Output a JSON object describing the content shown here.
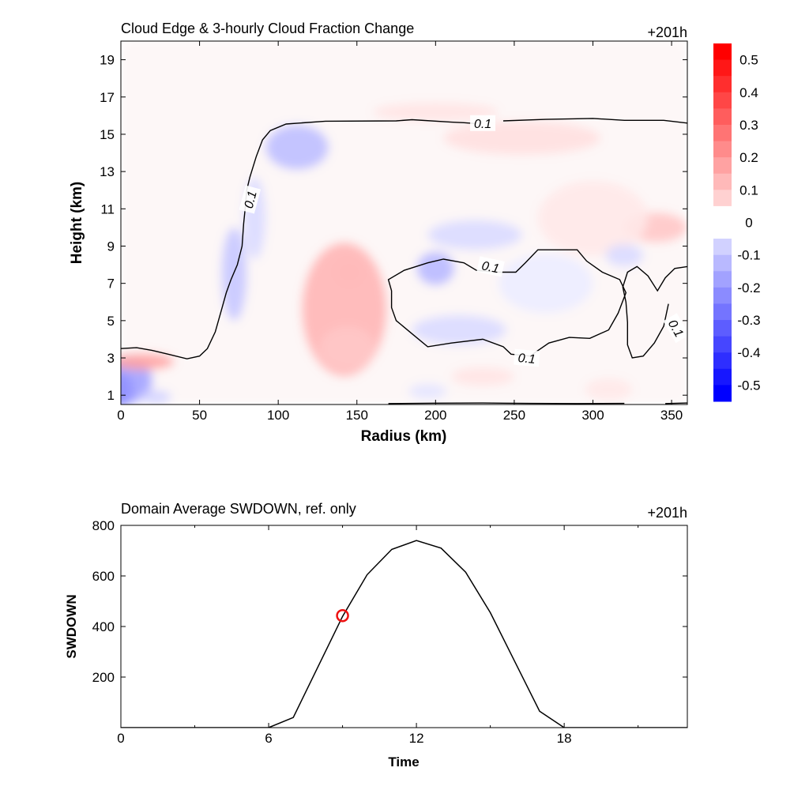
{
  "chart_data": [
    {
      "type": "heatmap",
      "title": "Cloud Edge & 3-hourly Cloud Fraction Change",
      "time_label": "+201h",
      "xlabel": "Radius (km)",
      "ylabel": "Height (km)",
      "xlim": [
        0,
        360
      ],
      "ylim": [
        0.5,
        20
      ],
      "xticks": [
        0,
        50,
        100,
        150,
        200,
        250,
        300,
        350
      ],
      "yticks": [
        1,
        3,
        5,
        7,
        9,
        11,
        13,
        15,
        17,
        19
      ],
      "colorbar": {
        "min": -0.55,
        "max": 0.55,
        "step": 0.05,
        "tick_values": [
          0.5,
          0.4,
          0.3,
          0.2,
          0.1,
          0,
          -0.1,
          -0.2,
          -0.3,
          -0.4,
          -0.5
        ],
        "tick_labels": [
          "0.5",
          "0.4",
          "0.3",
          "0.2",
          "0.1",
          "0",
          "-0.1",
          "-0.2",
          "-0.3",
          "-0.4",
          "-0.5"
        ],
        "neg_color": "#0000ff",
        "pos_color": "#ff0000"
      },
      "anomalies": [
        {
          "x": 0,
          "y": 1.3,
          "rx": 8,
          "ry": 0.9,
          "v": -0.55
        },
        {
          "x": 2,
          "y": 1.8,
          "rx": 18,
          "ry": 1.3,
          "v": -0.2
        },
        {
          "x": 14,
          "y": 2.8,
          "rx": 20,
          "ry": 0.45,
          "v": 0.2
        },
        {
          "x": 22,
          "y": 0.9,
          "rx": 10,
          "ry": 0.35,
          "v": -0.1
        },
        {
          "x": 112,
          "y": 14.3,
          "rx": 20,
          "ry": 1.2,
          "v": -0.14
        },
        {
          "x": 72,
          "y": 7.5,
          "rx": 8,
          "ry": 2.5,
          "v": -0.12
        },
        {
          "x": 85,
          "y": 10.5,
          "rx": 7,
          "ry": 2.2,
          "v": -0.08
        },
        {
          "x": 142,
          "y": 5.6,
          "rx": 27,
          "ry": 3.6,
          "v": 0.16
        },
        {
          "x": 144,
          "y": 3.5,
          "rx": 18,
          "ry": 1.2,
          "v": 0.12
        },
        {
          "x": 145,
          "y": 7.6,
          "rx": 9,
          "ry": 0.7,
          "v": 0.15
        },
        {
          "x": 200,
          "y": 7.8,
          "rx": 12,
          "ry": 0.9,
          "v": -0.15
        },
        {
          "x": 215,
          "y": 4.5,
          "rx": 30,
          "ry": 0.8,
          "v": -0.08
        },
        {
          "x": 225,
          "y": 9.6,
          "rx": 30,
          "ry": 0.8,
          "v": -0.08
        },
        {
          "x": 255,
          "y": 14.8,
          "rx": 50,
          "ry": 0.9,
          "v": 0.07
        },
        {
          "x": 200,
          "y": 16.2,
          "rx": 40,
          "ry": 0.5,
          "v": 0.06
        },
        {
          "x": 340,
          "y": 10.0,
          "rx": 20,
          "ry": 0.8,
          "v": 0.12
        },
        {
          "x": 300,
          "y": 10.5,
          "rx": 35,
          "ry": 2.0,
          "v": 0.05
        },
        {
          "x": 320,
          "y": 8.5,
          "rx": 12,
          "ry": 0.6,
          "v": -0.08
        },
        {
          "x": 270,
          "y": 7.0,
          "rx": 30,
          "ry": 1.6,
          "v": -0.04
        },
        {
          "x": 230,
          "y": 2.0,
          "rx": 20,
          "ry": 0.5,
          "v": 0.06
        },
        {
          "x": 310,
          "y": 1.3,
          "rx": 15,
          "ry": 0.6,
          "v": 0.05
        },
        {
          "x": 195,
          "y": 1.2,
          "rx": 12,
          "ry": 0.4,
          "v": -0.06
        }
      ],
      "contours": [
        {
          "level": 0.1,
          "closed": false,
          "points": [
            [
              0,
              3.5
            ],
            [
              10,
              3.55
            ],
            [
              20,
              3.4
            ],
            [
              30,
              3.2
            ],
            [
              42,
              2.95
            ],
            [
              50,
              3.1
            ],
            [
              55,
              3.5
            ],
            [
              60,
              4.4
            ],
            [
              64,
              5.6
            ],
            [
              67,
              6.5
            ],
            [
              70,
              7.2
            ],
            [
              74,
              8.0
            ],
            [
              77,
              9.0
            ],
            [
              78,
              10.2
            ],
            [
              79,
              11.0
            ],
            [
              80,
              12.0
            ],
            [
              82,
              12.7
            ],
            [
              86,
              13.8
            ],
            [
              90,
              14.7
            ],
            [
              95,
              15.2
            ],
            [
              105,
              15.55
            ],
            [
              130,
              15.7
            ],
            [
              175,
              15.72
            ],
            [
              185,
              15.78
            ],
            [
              210,
              15.65
            ],
            [
              218,
              15.62
            ],
            [
              225,
              15.58
            ]
          ]
        },
        {
          "level": 0.1,
          "closed": false,
          "points": [
            [
              243,
              15.72
            ],
            [
              270,
              15.8
            ],
            [
              300,
              15.85
            ],
            [
              320,
              15.75
            ],
            [
              345,
              15.75
            ],
            [
              360,
              15.6
            ]
          ]
        },
        {
          "level": 0.1,
          "closed": true,
          "points": [
            [
              218,
              8.1
            ],
            [
              205,
              8.3
            ],
            [
              195,
              8.1
            ],
            [
              180,
              7.7
            ],
            [
              170,
              7.2
            ],
            [
              172,
              6.6
            ],
            [
              172,
              5.7
            ],
            [
              175,
              5.0
            ],
            [
              185,
              4.3
            ],
            [
              195,
              3.6
            ],
            [
              210,
              3.8
            ],
            [
              230,
              4.0
            ],
            [
              243,
              3.6
            ],
            [
              248,
              3.2
            ],
            [
              260,
              3.1
            ],
            [
              272,
              3.8
            ],
            [
              285,
              4.1
            ],
            [
              298,
              4.05
            ],
            [
              310,
              4.5
            ],
            [
              316,
              5.4
            ],
            [
              321,
              6.5
            ],
            [
              317,
              7.2
            ],
            [
              306,
              7.6
            ],
            [
              296,
              8.2
            ],
            [
              290,
              8.8
            ],
            [
              265,
              8.8
            ],
            [
              257,
              8.1
            ],
            [
              251,
              7.6
            ],
            [
              240,
              7.6
            ],
            [
              226,
              7.7
            ]
          ]
        },
        {
          "level": 0.1,
          "closed": false,
          "points": [
            [
              360,
              7.9
            ],
            [
              352,
              7.8
            ],
            [
              346,
              7.3
            ],
            [
              341,
              6.6
            ],
            [
              335,
              7.4
            ],
            [
              328,
              7.9
            ],
            [
              322,
              7.6
            ],
            [
              319,
              6.8
            ],
            [
              321,
              6.0
            ],
            [
              322,
              4.9
            ],
            [
              322,
              3.7
            ],
            [
              325,
              3.0
            ],
            [
              332,
              3.1
            ],
            [
              339,
              3.8
            ],
            [
              345,
              4.7
            ],
            [
              348,
              5.9
            ]
          ]
        },
        {
          "level": 0.1,
          "closed": false,
          "points": [
            [
              346,
              0.55
            ],
            [
              360,
              0.58
            ]
          ]
        },
        {
          "level": 0.1,
          "closed": false,
          "points": [
            [
              170,
              0.55
            ],
            [
              200,
              0.57
            ],
            [
              230,
              0.58
            ],
            [
              260,
              0.56
            ],
            [
              290,
              0.55
            ],
            [
              320,
              0.56
            ]
          ]
        }
      ],
      "contour_labels": [
        {
          "x": 82,
          "y": 11.5,
          "angle": -75,
          "text": "0.1"
        },
        {
          "x": 230,
          "y": 15.6,
          "angle": 0,
          "text": "0.1"
        },
        {
          "x": 235,
          "y": 7.9,
          "angle": 12,
          "text": "0.1"
        },
        {
          "x": 258,
          "y": 3.0,
          "angle": 5,
          "text": "0.1"
        },
        {
          "x": 353,
          "y": 4.6,
          "angle": 60,
          "text": "0.1"
        }
      ]
    },
    {
      "type": "line",
      "title": "Domain Average SWDOWN, ref. only",
      "time_label": "+201h",
      "xlabel": "Time",
      "ylabel": "SWDOWN",
      "xlim": [
        0,
        23
      ],
      "ylim": [
        0,
        800
      ],
      "xticks": [
        0,
        6,
        12,
        18
      ],
      "yticks": [
        200,
        400,
        600,
        800
      ],
      "series": [
        {
          "x": [
            0,
            1,
            2,
            3,
            4,
            5,
            6,
            7,
            8,
            9,
            10,
            11,
            12,
            13,
            14,
            15,
            16,
            17,
            18,
            19,
            20,
            21,
            22,
            23
          ],
          "values": [
            0,
            0,
            0,
            0,
            0,
            0,
            0,
            40,
            240,
            440,
            605,
            705,
            740,
            710,
            615,
            455,
            260,
            65,
            0,
            0,
            0,
            0,
            0,
            0
          ]
        }
      ],
      "marker": {
        "x": 9,
        "y": 443,
        "color": "#ee1111"
      }
    }
  ]
}
